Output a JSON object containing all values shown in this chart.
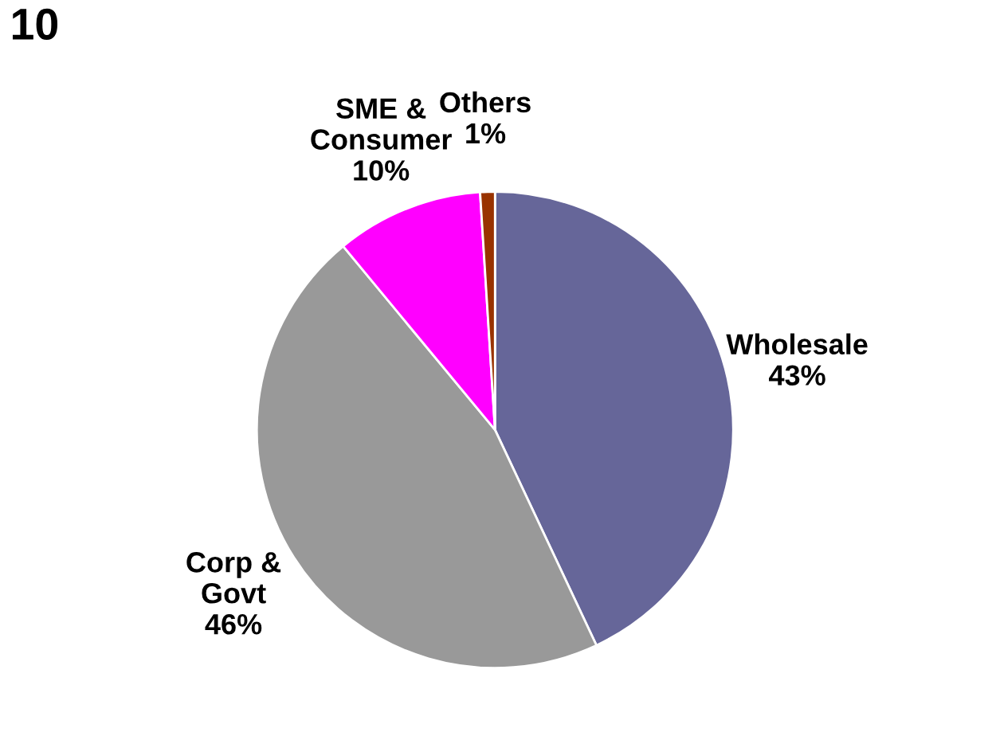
{
  "chart_data": {
    "type": "pie",
    "title": "10",
    "categories": [
      "Wholesale",
      "Corp &\nGovt",
      "SME &\nConsumer",
      "Others"
    ],
    "values": [
      43,
      46,
      10,
      1
    ],
    "colors": [
      "#666699",
      "#999999",
      "#ff00ff",
      "#993300"
    ],
    "value_labels": [
      "43%",
      "46%",
      "10%",
      "1%"
    ]
  }
}
